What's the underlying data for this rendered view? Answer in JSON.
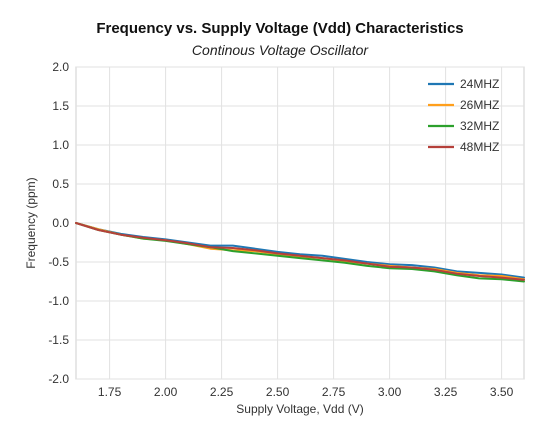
{
  "chart_data": {
    "type": "line",
    "title": "Frequency vs. Supply Voltage (Vdd) Characteristics",
    "subtitle": "Continous Voltage Oscillator",
    "xlabel": "Supply Voltage, Vdd (V)",
    "ylabel": "Frequency (ppm)",
    "xlim": [
      1.6,
      3.6
    ],
    "ylim": [
      -2.0,
      2.0
    ],
    "xticks": [
      1.75,
      2.0,
      2.25,
      2.5,
      2.75,
      3.0,
      3.25,
      3.5
    ],
    "xtick_labels": [
      "1.75",
      "2.00",
      "2.25",
      "2.50",
      "2.75",
      "3.00",
      "3.25",
      "3.50"
    ],
    "yticks": [
      2.0,
      1.5,
      1.0,
      0.5,
      0.0,
      -0.5,
      -1.0,
      -1.5,
      -2.0
    ],
    "ytick_labels": [
      "2.0",
      "1.5",
      "1.0",
      "0.5",
      "0.0",
      "-0.5",
      "-1.0",
      "-1.5",
      "-2.0"
    ],
    "grid": true,
    "legend_position": "top-right",
    "x": [
      1.6,
      1.7,
      1.8,
      1.9,
      2.0,
      2.1,
      2.2,
      2.3,
      2.4,
      2.5,
      2.6,
      2.7,
      2.8,
      2.9,
      3.0,
      3.1,
      3.2,
      3.3,
      3.4,
      3.5,
      3.6
    ],
    "series": [
      {
        "name": "24MHZ",
        "color": "#1f77b4",
        "values": [
          0.0,
          -0.08,
          -0.14,
          -0.18,
          -0.21,
          -0.25,
          -0.29,
          -0.29,
          -0.33,
          -0.37,
          -0.4,
          -0.42,
          -0.46,
          -0.5,
          -0.53,
          -0.54,
          -0.57,
          -0.62,
          -0.64,
          -0.66,
          -0.7
        ]
      },
      {
        "name": "26MHZ",
        "color": "#ff9f1c",
        "values": [
          0.0,
          -0.08,
          -0.15,
          -0.2,
          -0.22,
          -0.27,
          -0.33,
          -0.35,
          -0.36,
          -0.4,
          -0.43,
          -0.45,
          -0.49,
          -0.52,
          -0.55,
          -0.57,
          -0.59,
          -0.64,
          -0.67,
          -0.68,
          -0.72
        ]
      },
      {
        "name": "32MHZ",
        "color": "#2ca02c",
        "values": [
          0.0,
          -0.09,
          -0.15,
          -0.2,
          -0.23,
          -0.27,
          -0.31,
          -0.36,
          -0.39,
          -0.42,
          -0.45,
          -0.48,
          -0.51,
          -0.55,
          -0.58,
          -0.59,
          -0.62,
          -0.67,
          -0.71,
          -0.72,
          -0.75
        ]
      },
      {
        "name": "48MHZ",
        "color": "#b5403a",
        "values": [
          0.0,
          -0.09,
          -0.15,
          -0.19,
          -0.22,
          -0.26,
          -0.31,
          -0.32,
          -0.35,
          -0.39,
          -0.42,
          -0.45,
          -0.48,
          -0.52,
          -0.56,
          -0.57,
          -0.6,
          -0.65,
          -0.68,
          -0.7,
          -0.73
        ]
      }
    ]
  }
}
